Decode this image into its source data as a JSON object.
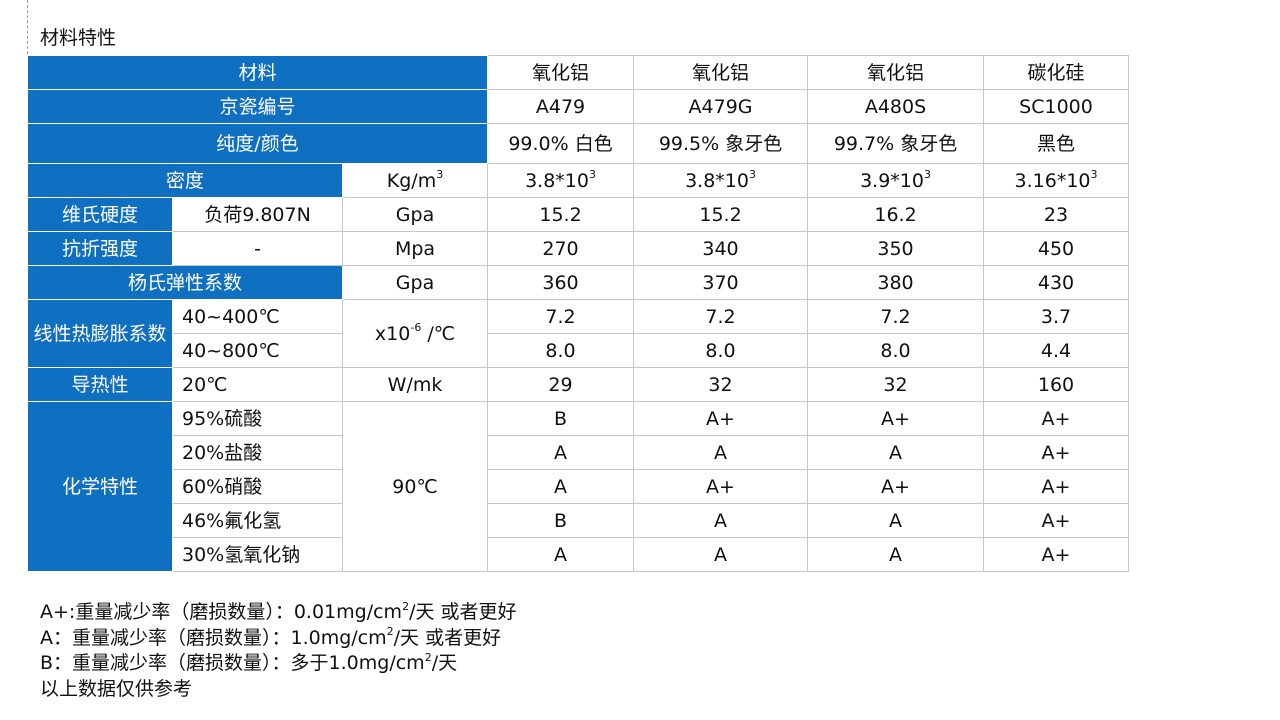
{
  "section_title": "材料特性",
  "header": {
    "material_label": "材料",
    "materials": [
      "氧化铝",
      "氧化铝",
      "氧化铝",
      "碳化硅"
    ],
    "grade_label": "京瓷编号",
    "grades": [
      "A479",
      "A479G",
      "A480S",
      "SC1000"
    ],
    "purity_label": "纯度/颜色",
    "purities": [
      "99.0% 白色",
      "99.5% 象牙色",
      "99.7% 象牙色",
      "黑色"
    ]
  },
  "rows": {
    "density": {
      "label": "密度",
      "unit_base": "Kg/m",
      "unit_exp": "3",
      "values": [
        "3.8*10",
        "3.8*10",
        "3.9*10",
        "3.16*10"
      ],
      "value_exp": "3"
    },
    "hardness": {
      "label": "维氏硬度",
      "condition": "负荷9.807N",
      "unit": "Gpa",
      "values": [
        "15.2",
        "15.2",
        "16.2",
        "23"
      ]
    },
    "flexural": {
      "label": "抗折强度",
      "condition": "-",
      "unit": "Mpa",
      "values": [
        "270",
        "340",
        "350",
        "450"
      ]
    },
    "young": {
      "label": "杨氏弹性系数",
      "unit": "Gpa",
      "values": [
        "360",
        "370",
        "380",
        "430"
      ]
    },
    "thermal_expansion": {
      "label": "线性热膨胀系数",
      "unit_base": "x10",
      "unit_exp": "-6",
      "unit_tail": " /℃",
      "ranges": [
        {
          "condition": "40~400℃",
          "values": [
            "7.2",
            "7.2",
            "7.2",
            "3.7"
          ]
        },
        {
          "condition": "40~800℃",
          "values": [
            "8.0",
            "8.0",
            "8.0",
            "4.4"
          ]
        }
      ]
    },
    "thermal_conductivity": {
      "label": "导热性",
      "condition": "20℃",
      "unit": "W/mk",
      "values": [
        "29",
        "32",
        "32",
        "160"
      ]
    },
    "chemical": {
      "label": "化学特性",
      "temperature": "90℃",
      "items": [
        {
          "condition": "95%硫酸",
          "values": [
            "B",
            "A+",
            "A+",
            "A+"
          ]
        },
        {
          "condition": "20%盐酸",
          "values": [
            "A",
            "A",
            "A",
            "A+"
          ]
        },
        {
          "condition": "60%硝酸",
          "values": [
            "A",
            "A+",
            "A+",
            "A+"
          ]
        },
        {
          "condition": "46%氟化氢",
          "values": [
            "B",
            "A",
            "A",
            "A+"
          ]
        },
        {
          "condition": "30%氢氧化钠",
          "values": [
            "A",
            "A",
            "A",
            "A+"
          ]
        }
      ]
    }
  },
  "notes": {
    "a_plus": {
      "pre": "A+:重量减少率（磨损数量）：0.01mg/cm",
      "exp": "2",
      "post": "/天 或者更好"
    },
    "a": {
      "pre": "A：重量减少率（磨损数量）：1.0mg/cm",
      "exp": "2",
      "post": "/天 或者更好"
    },
    "b": {
      "pre": "B：重量减少率（磨损数量）：多于1.0mg/cm",
      "exp": "2",
      "post": "/天"
    },
    "disclaimer": "以上数据仅供参考"
  },
  "colors": {
    "header_blue": "#0f6fc0",
    "border": "#c8c8c8"
  }
}
